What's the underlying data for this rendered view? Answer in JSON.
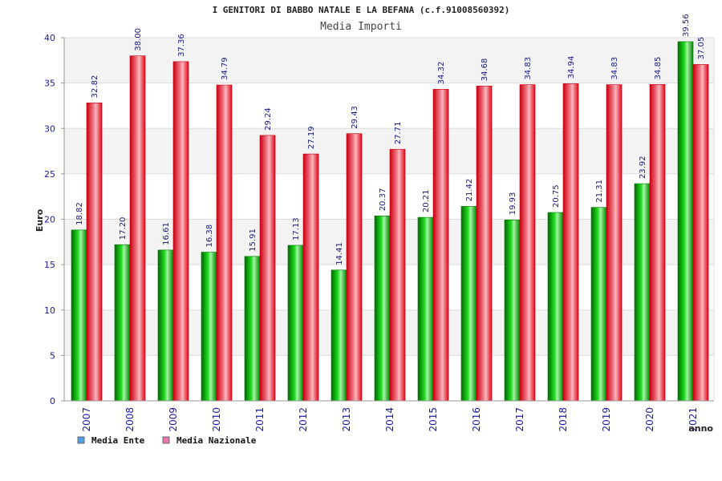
{
  "chart_data": {
    "type": "bar",
    "title": "I GENITORI DI BABBO NATALE E LA BEFANA (c.f.91008560392)",
    "subtitle": "Media Importi",
    "xlabel": "anno",
    "ylabel": "Euro",
    "ylim": [
      0,
      40
    ],
    "yticks": [
      0,
      5,
      10,
      15,
      20,
      25,
      30,
      35,
      40
    ],
    "grid": true,
    "legend_position": "bottom-left",
    "categories": [
      "2007",
      "2008",
      "2009",
      "2010",
      "2011",
      "2012",
      "2013",
      "2014",
      "2015",
      "2016",
      "2017",
      "2018",
      "2019",
      "2020",
      "2021"
    ],
    "series": [
      {
        "name": "Media Ente",
        "color": "#00b000",
        "legend_color": "#4f9fe8",
        "values": [
          18.82,
          17.2,
          16.61,
          16.38,
          15.91,
          17.13,
          14.41,
          20.37,
          20.21,
          21.42,
          19.93,
          20.75,
          21.31,
          23.92,
          39.56
        ],
        "labels": [
          "18.82",
          "17.20",
          "16.61",
          "16.38",
          "15.91",
          "17.13",
          "14.41",
          "20.37",
          "20.21",
          "21.42",
          "19.93",
          "20.75",
          "21.31",
          "23.92",
          "39.56"
        ]
      },
      {
        "name": "Media Nazionale",
        "color": "#e81020",
        "legend_color": "#e57aa8",
        "values": [
          32.82,
          38.0,
          37.36,
          34.79,
          29.24,
          27.19,
          29.43,
          27.71,
          34.32,
          34.68,
          34.83,
          34.94,
          34.83,
          34.85,
          37.05
        ],
        "labels": [
          "32.82",
          "38.00",
          "37.36",
          "34.79",
          "29.24",
          "27.19",
          "29.43",
          "27.71",
          "34.32",
          "34.68",
          "34.83",
          "34.94",
          "34.83",
          "34.85",
          "37.05"
        ]
      }
    ]
  }
}
